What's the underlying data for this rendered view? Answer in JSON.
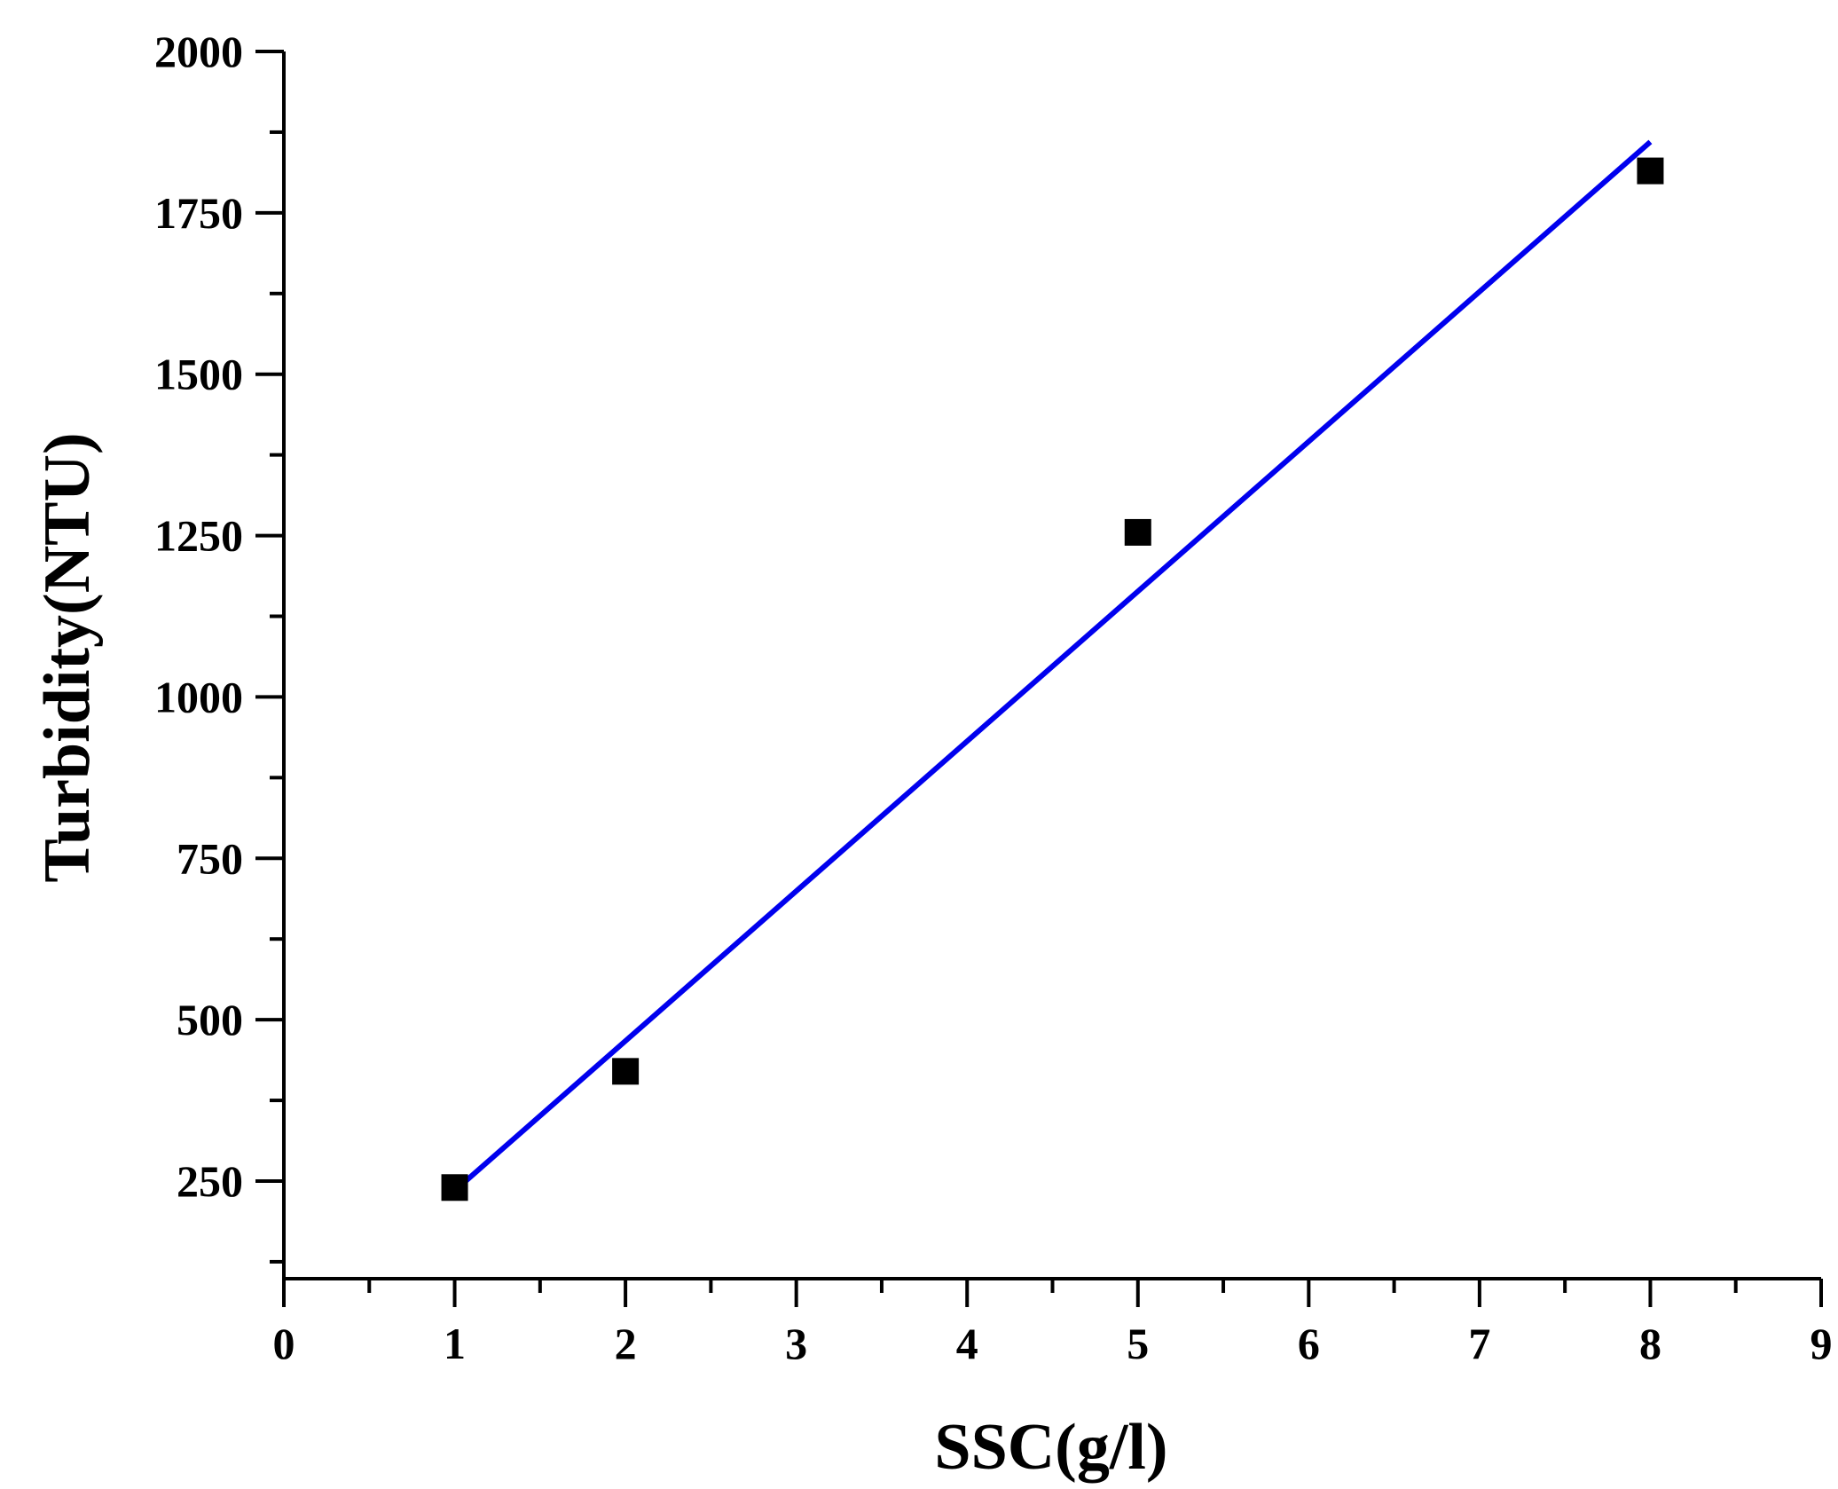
{
  "chart_data": {
    "type": "scatter",
    "title": "",
    "xlabel": "SSC(g/l)",
    "ylabel": "Turbidity(NTU)",
    "xlim": [
      0,
      9
    ],
    "ylim": [
      100,
      2000
    ],
    "xticks": [
      0,
      1,
      2,
      3,
      4,
      5,
      6,
      7,
      8,
      9
    ],
    "yticks": [
      250,
      500,
      750,
      1000,
      1250,
      1500,
      1750,
      2000
    ],
    "xtick_labels": [
      "0",
      "1",
      "2",
      "3",
      "4",
      "5",
      "6",
      "7",
      "8",
      "9"
    ],
    "ytick_labels": [
      "250",
      "500",
      "750",
      "1000",
      "1250",
      "1500",
      "1750",
      "2000"
    ],
    "grid": false,
    "legend": "none",
    "series": [
      {
        "kind": "scatter",
        "marker": "square",
        "color": "#000000",
        "x": [
          1,
          2,
          5,
          8
        ],
        "y": [
          240,
          420,
          1255,
          1815
        ]
      },
      {
        "kind": "line",
        "color": "#0000ee",
        "x": [
          1,
          8
        ],
        "y": [
          235,
          1860
        ]
      }
    ]
  }
}
